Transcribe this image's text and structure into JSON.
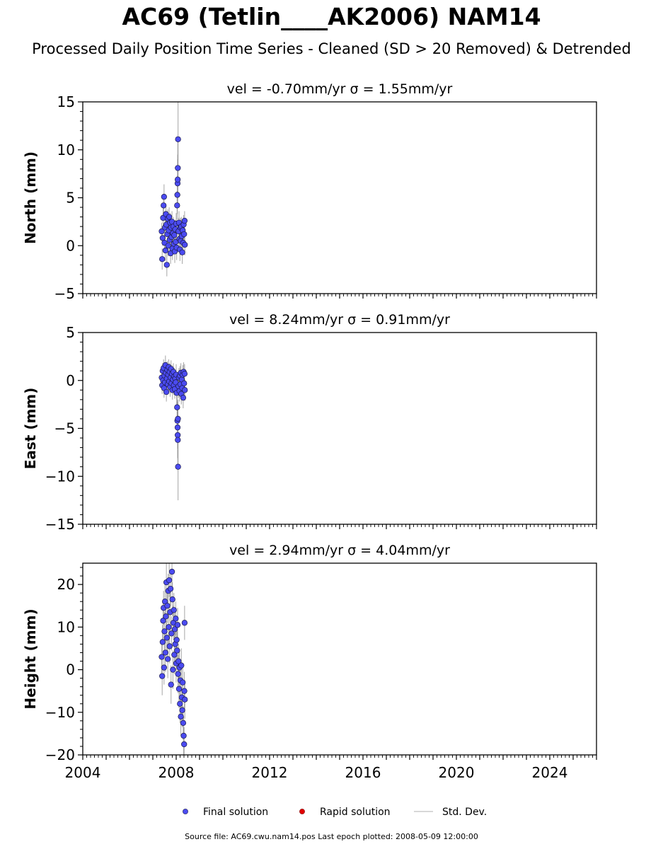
{
  "title": "AC69 (Tetlin____AK2006) NAM14",
  "subtitle": "Processed Daily Position Time Series - Cleaned (SD > 20 Removed) & Detrended",
  "source_line": "Source file: AC69.cwu.nam14.pos  Last epoch plotted: 2008-05-09 12:00:00",
  "chart_data": {
    "type": "scatter",
    "x_axis": {
      "range": [
        2004,
        2026
      ],
      "ticks": [
        2004,
        2008,
        2012,
        2016,
        2020,
        2024
      ],
      "tick_labels": [
        "2004",
        "2008",
        "2012",
        "2016",
        "2020",
        "2024"
      ]
    },
    "legend": {
      "placement": "bottom-center",
      "entries": [
        {
          "label": "Final solution",
          "color": "#4b4bf0",
          "marker": "circle"
        },
        {
          "label": "Rapid solution",
          "color": "#e00000",
          "marker": "circle"
        },
        {
          "label": "Std. Dev.",
          "color": "#cccccc",
          "marker": "line"
        }
      ]
    },
    "panels": [
      {
        "name": "north",
        "panel_title": "vel = -0.70mm/yr   σ = 1.55mm/yr",
        "ylabel": "North (mm)",
        "ylim": [
          -5,
          15
        ],
        "yticks": [
          -5,
          0,
          5,
          10,
          15
        ],
        "ytick_labels": [
          "−5",
          "0",
          "5",
          "10",
          "15"
        ],
        "minor_step": 1,
        "points": [
          [
            2007.38,
            1.5,
            0.9
          ],
          [
            2007.4,
            -1.4,
            1.1
          ],
          [
            2007.42,
            0.8,
            0.8
          ],
          [
            2007.44,
            2.9,
            1.0
          ],
          [
            2007.46,
            4.2,
            1.2
          ],
          [
            2007.48,
            5.1,
            1.3
          ],
          [
            2007.5,
            0.3,
            0.9
          ],
          [
            2007.52,
            1.9,
            1.0
          ],
          [
            2007.54,
            -0.5,
            1.1
          ],
          [
            2007.56,
            3.3,
            1.0
          ],
          [
            2007.58,
            2.2,
            0.8
          ],
          [
            2007.6,
            -2.0,
            1.2
          ],
          [
            2007.62,
            1.2,
            0.9
          ],
          [
            2007.64,
            2.8,
            1.0
          ],
          [
            2007.66,
            0.0,
            1.1
          ],
          [
            2007.68,
            1.6,
            0.9
          ],
          [
            2007.7,
            3.0,
            1.0
          ],
          [
            2007.72,
            0.6,
            1.2
          ],
          [
            2007.74,
            2.4,
            1.0
          ],
          [
            2007.76,
            -0.8,
            1.1
          ],
          [
            2007.78,
            1.9,
            0.9
          ],
          [
            2007.8,
            0.9,
            1.0
          ],
          [
            2007.82,
            2.5,
            1.1
          ],
          [
            2007.84,
            -0.3,
            1.2
          ],
          [
            2007.86,
            1.3,
            0.9
          ],
          [
            2007.88,
            2.0,
            1.0
          ],
          [
            2007.9,
            0.2,
            1.1
          ],
          [
            2007.92,
            1.1,
            1.0
          ],
          [
            2007.94,
            -0.6,
            1.2
          ],
          [
            2007.96,
            1.7,
            1.0
          ],
          [
            2007.98,
            0.4,
            1.0
          ],
          [
            2008.0,
            2.3,
            1.1
          ],
          [
            2008.02,
            -0.2,
            1.3
          ],
          [
            2008.04,
            4.2,
            1.5
          ],
          [
            2008.05,
            5.3,
            2.0
          ],
          [
            2008.06,
            6.5,
            2.5
          ],
          [
            2008.065,
            6.9,
            2.6
          ],
          [
            2008.07,
            8.1,
            3.0
          ],
          [
            2008.08,
            11.1,
            4.0
          ],
          [
            2008.1,
            1.5,
            1.4
          ],
          [
            2008.12,
            2.4,
            1.2
          ],
          [
            2008.14,
            0.7,
            1.1
          ],
          [
            2008.16,
            -0.4,
            1.2
          ],
          [
            2008.18,
            1.9,
            1.0
          ],
          [
            2008.2,
            0.5,
            1.1
          ],
          [
            2008.22,
            2.0,
            1.0
          ],
          [
            2008.24,
            1.0,
            1.1
          ],
          [
            2008.26,
            -0.7,
            1.2
          ],
          [
            2008.28,
            1.6,
            1.0
          ],
          [
            2008.3,
            0.3,
            1.1
          ],
          [
            2008.32,
            2.2,
            1.0
          ],
          [
            2008.34,
            1.2,
            1.1
          ],
          [
            2008.36,
            2.6,
            1.0
          ],
          [
            2008.37,
            0.1,
            1.1
          ]
        ]
      },
      {
        "name": "east",
        "panel_title": "vel = 8.24mm/yr   σ = 0.91mm/yr",
        "ylabel": "East (mm)",
        "ylim": [
          -15,
          5
        ],
        "yticks": [
          -15,
          -10,
          -5,
          0,
          5
        ],
        "ytick_labels": [
          "−15",
          "−10",
          "−5",
          "0",
          "5"
        ],
        "minor_step": 1,
        "points": [
          [
            2007.38,
            0.3,
            0.8
          ],
          [
            2007.4,
            -0.5,
            0.9
          ],
          [
            2007.42,
            1.0,
            0.8
          ],
          [
            2007.44,
            0.0,
            1.0
          ],
          [
            2007.46,
            1.3,
            0.9
          ],
          [
            2007.48,
            -0.8,
            1.0
          ],
          [
            2007.5,
            0.5,
            0.8
          ],
          [
            2007.52,
            -0.2,
            0.9
          ],
          [
            2007.54,
            1.6,
            1.0
          ],
          [
            2007.56,
            0.8,
            0.9
          ],
          [
            2007.58,
            -1.2,
            1.0
          ],
          [
            2007.6,
            0.2,
            0.8
          ],
          [
            2007.62,
            1.1,
            0.9
          ],
          [
            2007.64,
            -0.4,
            1.0
          ],
          [
            2007.66,
            0.6,
            0.9
          ],
          [
            2007.68,
            1.4,
            0.8
          ],
          [
            2007.7,
            -0.1,
            1.0
          ],
          [
            2007.72,
            0.9,
            0.9
          ],
          [
            2007.74,
            -0.7,
            1.0
          ],
          [
            2007.76,
            0.3,
            0.8
          ],
          [
            2007.78,
            1.2,
            0.9
          ],
          [
            2007.8,
            -0.3,
            1.0
          ],
          [
            2007.82,
            0.7,
            0.9
          ],
          [
            2007.84,
            -1.0,
            1.0
          ],
          [
            2007.86,
            0.1,
            0.8
          ],
          [
            2007.88,
            0.9,
            0.9
          ],
          [
            2007.9,
            -0.5,
            1.0
          ],
          [
            2007.92,
            0.4,
            0.9
          ],
          [
            2007.94,
            -0.9,
            1.0
          ],
          [
            2007.96,
            0.2,
            0.9
          ],
          [
            2007.98,
            -0.2,
            1.0
          ],
          [
            2008.0,
            0.6,
            1.1
          ],
          [
            2008.02,
            -1.3,
            1.2
          ],
          [
            2008.04,
            -2.8,
            1.5
          ],
          [
            2008.05,
            -4.2,
            2.0
          ],
          [
            2008.06,
            -4.9,
            2.2
          ],
          [
            2008.065,
            -5.7,
            2.4
          ],
          [
            2008.07,
            -6.2,
            2.6
          ],
          [
            2008.075,
            -4.0,
            2.0
          ],
          [
            2008.08,
            -9.0,
            3.5
          ],
          [
            2008.1,
            -0.6,
            1.2
          ],
          [
            2008.12,
            0.3,
            1.0
          ],
          [
            2008.14,
            -1.1,
            1.1
          ],
          [
            2008.16,
            0.5,
            1.0
          ],
          [
            2008.18,
            -0.4,
            1.1
          ],
          [
            2008.2,
            0.8,
            1.0
          ],
          [
            2008.22,
            -1.4,
            1.1
          ],
          [
            2008.24,
            0.1,
            1.0
          ],
          [
            2008.26,
            -0.8,
            1.1
          ],
          [
            2008.28,
            0.6,
            1.0
          ],
          [
            2008.3,
            -1.8,
            1.1
          ],
          [
            2008.32,
            0.9,
            1.0
          ],
          [
            2008.34,
            -0.3,
            1.1
          ],
          [
            2008.36,
            0.7,
            1.0
          ],
          [
            2008.37,
            -1.0,
            1.1
          ]
        ]
      },
      {
        "name": "height",
        "panel_title": "vel = 2.94mm/yr   σ = 4.04mm/yr",
        "ylabel": "Height (mm)",
        "ylim": [
          -20,
          25
        ],
        "yticks": [
          -20,
          -10,
          0,
          10,
          20
        ],
        "ytick_labels": [
          "−20",
          "−10",
          "0",
          "10",
          "20"
        ],
        "minor_step": 2,
        "points": [
          [
            2007.38,
            3.0,
            4.0
          ],
          [
            2007.4,
            -1.5,
            4.5
          ],
          [
            2007.42,
            6.5,
            4.0
          ],
          [
            2007.44,
            11.5,
            4.5
          ],
          [
            2007.46,
            14.5,
            4.0
          ],
          [
            2007.48,
            0.5,
            4.0
          ],
          [
            2007.5,
            9.0,
            4.5
          ],
          [
            2007.52,
            16.0,
            4.0
          ],
          [
            2007.54,
            4.0,
            4.5
          ],
          [
            2007.56,
            12.5,
            4.0
          ],
          [
            2007.58,
            20.5,
            4.5
          ],
          [
            2007.6,
            7.5,
            4.0
          ],
          [
            2007.62,
            15.0,
            4.0
          ],
          [
            2007.64,
            2.5,
            4.5
          ],
          [
            2007.66,
            18.5,
            4.0
          ],
          [
            2007.68,
            10.0,
            4.5
          ],
          [
            2007.7,
            21.0,
            4.0
          ],
          [
            2007.72,
            5.5,
            4.0
          ],
          [
            2007.74,
            13.5,
            4.5
          ],
          [
            2007.76,
            19.0,
            4.0
          ],
          [
            2007.78,
            -3.5,
            4.5
          ],
          [
            2007.8,
            8.5,
            4.0
          ],
          [
            2007.82,
            23.0,
            4.5
          ],
          [
            2007.84,
            16.5,
            4.0
          ],
          [
            2007.86,
            0.0,
            4.5
          ],
          [
            2007.88,
            11.0,
            4.0
          ],
          [
            2007.9,
            14.0,
            4.0
          ],
          [
            2007.92,
            3.5,
            4.5
          ],
          [
            2007.94,
            9.5,
            4.0
          ],
          [
            2007.96,
            6.0,
            4.5
          ],
          [
            2007.98,
            12.0,
            4.0
          ],
          [
            2008.0,
            1.5,
            4.5
          ],
          [
            2008.02,
            7.0,
            4.0
          ],
          [
            2008.04,
            4.5,
            4.5
          ],
          [
            2008.06,
            10.5,
            4.0
          ],
          [
            2008.08,
            -1.0,
            4.5
          ],
          [
            2008.1,
            2.0,
            4.0
          ],
          [
            2008.12,
            -4.5,
            4.5
          ],
          [
            2008.14,
            0.5,
            4.0
          ],
          [
            2008.16,
            -8.0,
            4.5
          ],
          [
            2008.18,
            -2.5,
            4.0
          ],
          [
            2008.2,
            -11.0,
            4.5
          ],
          [
            2008.22,
            1.0,
            4.0
          ],
          [
            2008.24,
            -6.5,
            4.5
          ],
          [
            2008.26,
            -9.5,
            4.0
          ],
          [
            2008.28,
            -3.0,
            4.5
          ],
          [
            2008.3,
            -12.5,
            4.0
          ],
          [
            2008.32,
            -15.5,
            4.5
          ],
          [
            2008.34,
            -17.5,
            4.0
          ],
          [
            2008.35,
            -5.0,
            4.5
          ],
          [
            2008.36,
            11.0,
            4.0
          ],
          [
            2008.37,
            -7.0,
            4.5
          ]
        ]
      }
    ]
  }
}
